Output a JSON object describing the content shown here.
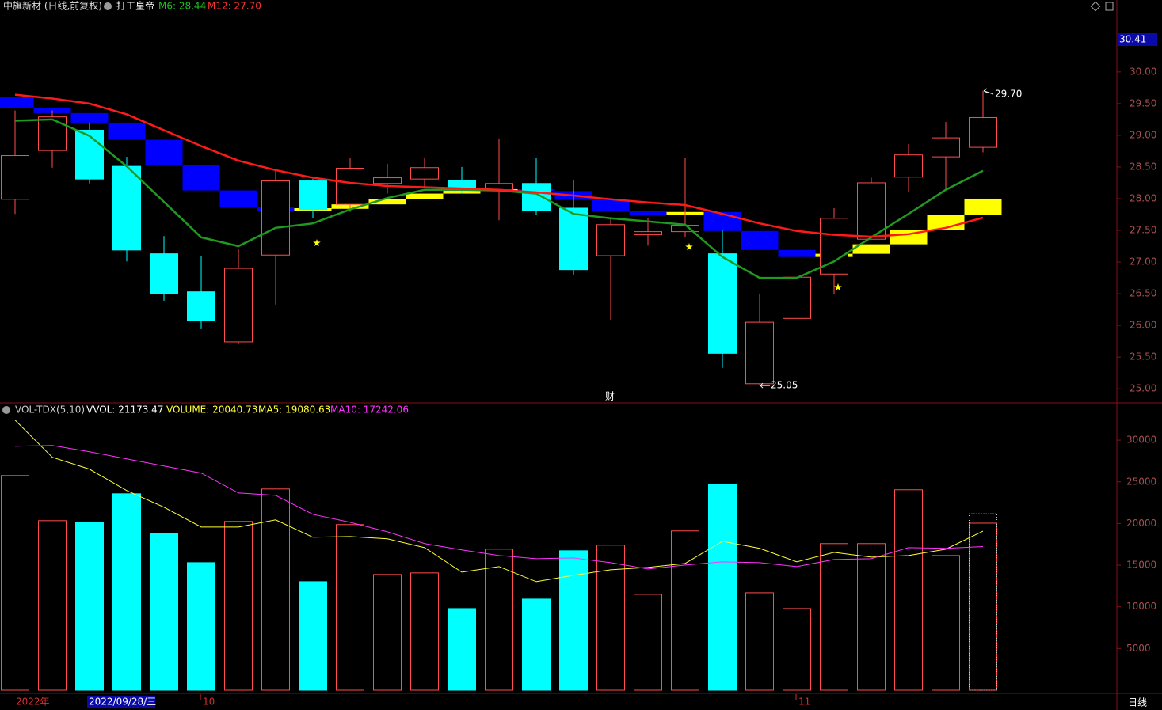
{
  "chart_data": [
    {
      "type": "candlestick",
      "title": "中旗新材 (日线,前复权)",
      "indicator": "打工皇帝",
      "up_color": "#ff4d4d",
      "down_color": "#00ffff",
      "open": [
        27.99,
        28.76,
        29.08,
        28.51,
        27.13,
        26.53,
        25.74,
        27.11,
        28.28,
        27.91,
        28.24,
        28.31,
        28.29,
        28.14,
        28.24,
        27.85,
        27.1,
        27.43,
        27.48,
        27.13,
        25.08,
        26.11,
        26.81,
        27.36,
        28.34,
        28.66,
        28.81
      ],
      "high": [
        29.39,
        29.39,
        29.2,
        28.66,
        27.41,
        27.09,
        27.2,
        28.45,
        28.31,
        28.64,
        28.55,
        28.64,
        28.5,
        28.95,
        28.64,
        28.29,
        27.7,
        27.7,
        28.64,
        27.51,
        26.49,
        26.76,
        27.85,
        28.33,
        28.86,
        29.21,
        29.7
      ],
      "low": [
        27.76,
        28.49,
        28.24,
        27.01,
        26.39,
        25.94,
        25.71,
        26.33,
        27.7,
        27.79,
        28.08,
        28.19,
        28.08,
        27.66,
        27.74,
        26.79,
        26.09,
        27.26,
        27.39,
        25.33,
        25.05,
        26.11,
        26.5,
        27.36,
        28.1,
        28.14,
        28.73
      ],
      "close": [
        28.68,
        29.29,
        28.31,
        27.19,
        26.5,
        26.08,
        26.9,
        28.28,
        27.83,
        28.48,
        28.33,
        28.49,
        28.18,
        28.24,
        27.81,
        26.88,
        27.59,
        27.48,
        27.58,
        25.56,
        26.05,
        26.76,
        27.69,
        28.25,
        28.69,
        28.96,
        29.28
      ],
      "series": [
        {
          "name": "M6: 28.44",
          "color": "#1f9a1f",
          "values": [
            29.23,
            29.25,
            28.99,
            28.51,
            27.95,
            27.39,
            27.25,
            27.54,
            27.61,
            27.83,
            28.01,
            28.14,
            28.14,
            28.13,
            28.08,
            27.76,
            27.69,
            27.64,
            27.59,
            27.08,
            26.75,
            26.75,
            27.01,
            27.39,
            27.76,
            28.14,
            28.44
          ]
        },
        {
          "name": "M12: 27.70",
          "color": "#ff1a1a",
          "values": [
            29.64,
            29.58,
            29.5,
            29.33,
            29.08,
            28.83,
            28.6,
            28.45,
            28.33,
            28.25,
            28.2,
            28.18,
            28.16,
            28.14,
            28.1,
            28.05,
            27.99,
            27.94,
            27.9,
            27.76,
            27.61,
            27.49,
            27.43,
            27.4,
            27.44,
            27.54,
            27.7
          ]
        }
      ],
      "bands": [
        [
          29.6,
          29.43
        ],
        [
          29.43,
          29.35
        ],
        [
          29.35,
          29.2
        ],
        [
          29.2,
          28.93
        ],
        [
          28.93,
          28.53
        ],
        [
          28.53,
          28.13
        ],
        [
          28.13,
          27.86
        ],
        [
          27.86,
          27.81
        ],
        [
          27.81,
          27.85
        ],
        [
          27.84,
          27.91
        ],
        [
          27.91,
          27.99
        ],
        [
          27.99,
          28.08
        ],
        [
          28.08,
          28.13
        ],
        [
          28.13,
          28.15
        ],
        [
          28.15,
          28.12
        ],
        [
          28.12,
          27.98
        ],
        [
          27.98,
          27.81
        ],
        [
          27.81,
          27.75
        ],
        [
          27.75,
          27.79
        ],
        [
          27.79,
          27.49
        ],
        [
          27.49,
          27.19
        ],
        [
          27.19,
          27.08
        ],
        [
          27.08,
          27.13
        ],
        [
          27.13,
          27.28
        ],
        [
          27.28,
          27.51
        ],
        [
          27.51,
          27.74
        ],
        [
          27.74,
          28.0
        ]
      ],
      "band_up_color": "#ffff00",
      "band_down_color": "#0000ff",
      "ylim": [
        24.84,
        30.41
      ],
      "yticks": [
        {
          "value": 25,
          "label": "25.00"
        },
        {
          "value": 25.5,
          "label": "25.50"
        },
        {
          "value": 26,
          "label": "26.00"
        },
        {
          "value": 26.5,
          "label": "26.50"
        },
        {
          "value": 27,
          "label": "27.00"
        },
        {
          "value": 27.5,
          "label": "27.50"
        },
        {
          "value": 28,
          "label": "28.00"
        },
        {
          "value": 28.5,
          "label": "28.50"
        },
        {
          "value": 29,
          "label": "29.00"
        },
        {
          "value": 29.5,
          "label": "29.50"
        },
        {
          "value": 30,
          "label": "30.00"
        }
      ],
      "annotations": [
        "29.70",
        "25.05"
      ],
      "marker": "财"
    },
    {
      "type": "bar",
      "header": "VOL-TDX(5,10)",
      "vvol_label": "VVOL: 21173.47",
      "vvol": 21173.47,
      "volume_label": "VOLUME: 20040.73",
      "values": [
        25760,
        20340,
        20150,
        23570,
        18820,
        15300,
        20250,
        24140,
        13020,
        19870,
        13880,
        14070,
        9790,
        16920,
        10930,
        16730,
        17400,
        11500,
        19110,
        24710,
        11690,
        9790,
        17590,
        17590,
        24050,
        16160,
        20040.73
      ],
      "series": [
        {
          "name": "MA5: 19080.63",
          "color": "#ffff33",
          "values": [
            32410,
            27950,
            26520,
            23950,
            21960,
            19580,
            19580,
            20440,
            18350,
            18440,
            18160,
            17110,
            14160,
            14830,
            13020,
            13780,
            14450,
            14730,
            15210,
            17870,
            17020,
            15400,
            16540,
            15970,
            16160,
            16920,
            19080.63
          ]
        },
        {
          "name": "MA10: 17242.06",
          "color": "#ff33ff",
          "values": [
            29280,
            29370,
            28610,
            27760,
            26900,
            26050,
            23670,
            23380,
            21100,
            20150,
            19010,
            17590,
            16830,
            16160,
            15780,
            15870,
            15300,
            14540,
            15020,
            15400,
            15300,
            14830,
            15680,
            15780,
            17110,
            17020,
            17242.06
          ]
        }
      ],
      "ylim": [
        0,
        34000
      ],
      "yticks": [
        5000,
        10000,
        15000,
        20000,
        25000,
        30000
      ],
      "x_labels": [
        "2022年",
        "2022/09/28/三",
        "10",
        "11"
      ],
      "period": "日线"
    }
  ]
}
